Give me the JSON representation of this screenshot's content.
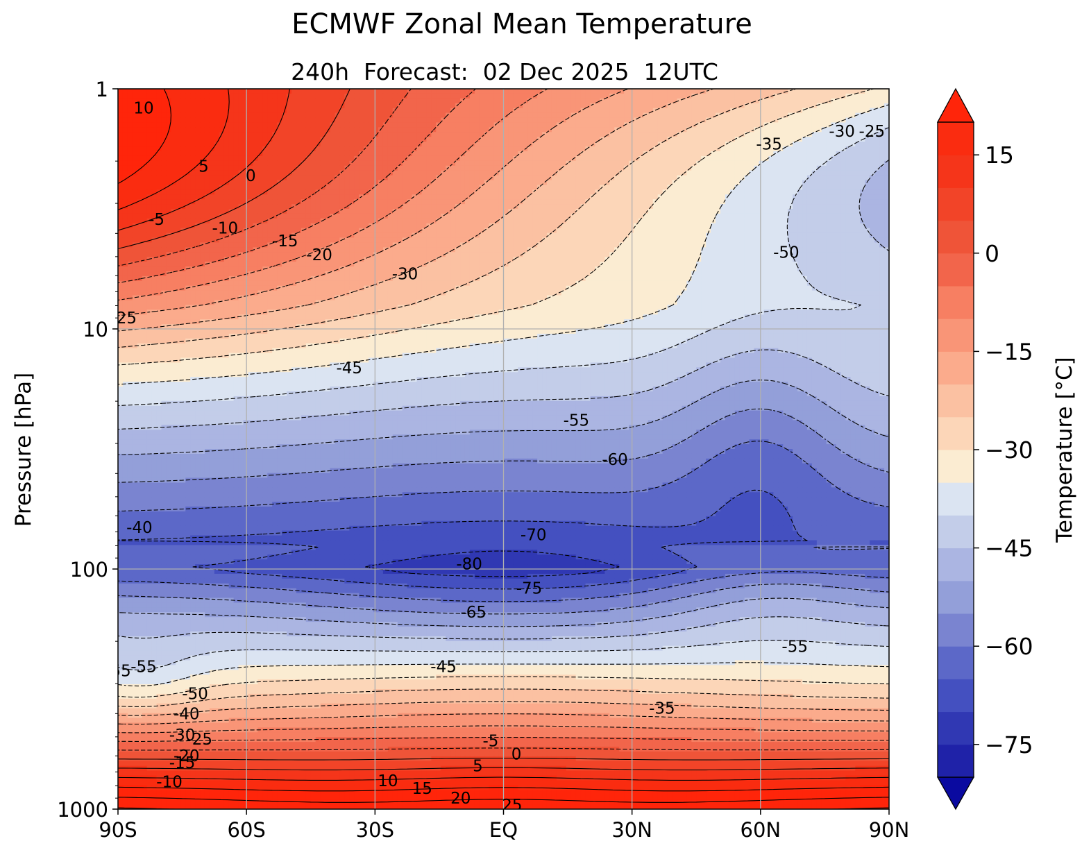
{
  "chart_data": {
    "type": "heatmap",
    "title": "ECMWF Zonal Mean Temperature",
    "subtitle": "240h  Forecast:  02 Dec 2025  12UTC",
    "xlabel": "",
    "ylabel": "Pressure [hPa]",
    "x_ticks": [
      "90S",
      "60S",
      "30S",
      "EQ",
      "30N",
      "60N",
      "90N"
    ],
    "x_tick_values": [
      -90,
      -60,
      -30,
      0,
      30,
      60,
      90
    ],
    "y_ticks": [
      "1",
      "10",
      "100",
      "1000"
    ],
    "y_tick_values": [
      1,
      10,
      100,
      1000
    ],
    "y_scale": "log",
    "y_inverted": true,
    "xlim": [
      -90,
      90
    ],
    "ylim": [
      1000,
      1
    ],
    "grid": true,
    "colorbar": {
      "label": "Temperature [°C]",
      "min": -85,
      "max": 25,
      "step": 5,
      "extend": "both",
      "tick_values": [
        -75,
        -60,
        -45,
        -30,
        -15,
        0,
        15
      ],
      "tick_labels": [
        "−75",
        "−60",
        "−45",
        "−30",
        "−15",
        "0",
        "15"
      ],
      "colors": [
        "#0a0aa0",
        "#1f22a8",
        "#3038b3",
        "#4450c0",
        "#5c68c8",
        "#7a84d0",
        "#939fd9",
        "#abb5e2",
        "#c3cde9",
        "#dbe4f2",
        "#fbecd2",
        "#fcd6b8",
        "#fbc1a2",
        "#fbab8c",
        "#f99577",
        "#f77f62",
        "#f2654b",
        "#ef5438",
        "#f24428",
        "#f5351a",
        "#fa2c10",
        "#ff250a"
      ]
    },
    "contour_labels": [
      {
        "text": "10",
        "lat": -84,
        "p": 1.2
      },
      {
        "text": "5",
        "lat": -70,
        "p": 2.1
      },
      {
        "text": "0",
        "lat": -59,
        "p": 2.3
      },
      {
        "text": "-5",
        "lat": -81,
        "p": 3.5
      },
      {
        "text": "-10",
        "lat": -65,
        "p": 3.8
      },
      {
        "text": "-15",
        "lat": -51,
        "p": 4.3
      },
      {
        "text": "-20",
        "lat": -43,
        "p": 4.9
      },
      {
        "text": "-30",
        "lat": -23,
        "p": 5.9
      },
      {
        "text": "-35",
        "lat": 62,
        "p": 1.7
      },
      {
        "text": "-30",
        "lat": 79,
        "p": 1.5
      },
      {
        "text": "-25",
        "lat": 86,
        "p": 1.5
      },
      {
        "text": "-50",
        "lat": 66,
        "p": 4.8
      },
      {
        "text": "25",
        "lat": -88,
        "p": 9.0
      },
      {
        "text": "-45",
        "lat": -36,
        "p": 14.5
      },
      {
        "text": "-55",
        "lat": 17,
        "p": 24
      },
      {
        "text": "-60",
        "lat": 26,
        "p": 35
      },
      {
        "text": "-40",
        "lat": -85,
        "p": 67
      },
      {
        "text": "-70",
        "lat": 7,
        "p": 72
      },
      {
        "text": "-80",
        "lat": -8,
        "p": 95
      },
      {
        "text": "-75",
        "lat": 6,
        "p": 120
      },
      {
        "text": "-65",
        "lat": -7,
        "p": 151
      },
      {
        "text": "-55",
        "lat": 68,
        "p": 210
      },
      {
        "text": "-45",
        "lat": -14,
        "p": 255
      },
      {
        "text": "-55",
        "lat": -90,
        "p": 265
      },
      {
        "text": "-55",
        "lat": -84,
        "p": 255
      },
      {
        "text": "-50",
        "lat": -72,
        "p": 330
      },
      {
        "text": "-40",
        "lat": -74,
        "p": 400
      },
      {
        "text": "-35",
        "lat": 37,
        "p": 380
      },
      {
        "text": "-30",
        "lat": -75,
        "p": 490
      },
      {
        "text": "-25",
        "lat": -71,
        "p": 510
      },
      {
        "text": "-5",
        "lat": -3,
        "p": 520
      },
      {
        "text": "0",
        "lat": 3,
        "p": 590
      },
      {
        "text": "-20",
        "lat": -74,
        "p": 600
      },
      {
        "text": "-15",
        "lat": -75,
        "p": 640
      },
      {
        "text": "5",
        "lat": -6,
        "p": 660
      },
      {
        "text": "-10",
        "lat": -78,
        "p": 770
      },
      {
        "text": "10",
        "lat": -27,
        "p": 760
      },
      {
        "text": "15",
        "lat": -19,
        "p": 820
      },
      {
        "text": "20",
        "lat": -10,
        "p": 900
      },
      {
        "text": "25",
        "lat": 2,
        "p": 960
      }
    ]
  }
}
